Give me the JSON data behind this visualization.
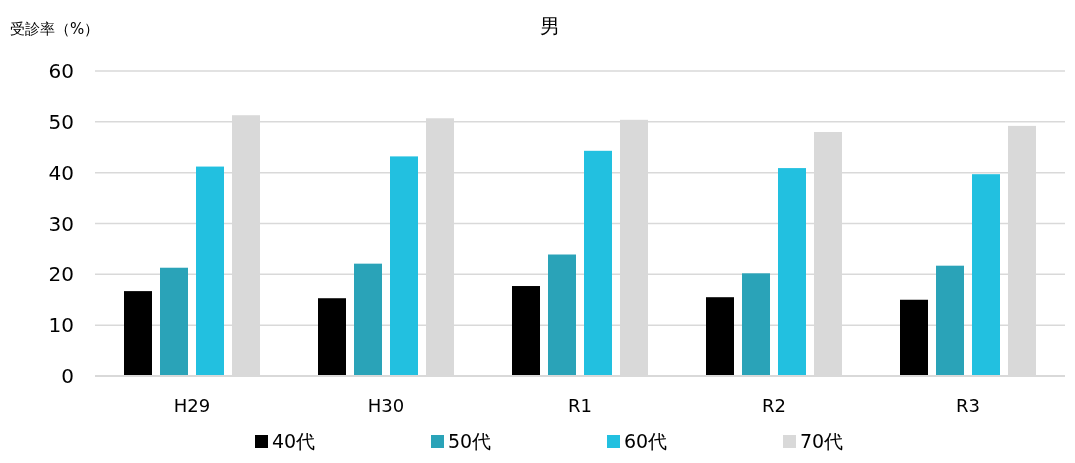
{
  "chart_data": {
    "type": "bar",
    "title": "男",
    "ylabel": "受診率（%）",
    "categories": [
      "H29",
      "H30",
      "R1",
      "R2",
      "R3"
    ],
    "series": [
      {
        "name": "40代",
        "color": "#000000",
        "values": [
          16.7,
          15.3,
          17.7,
          15.5,
          15.0
        ]
      },
      {
        "name": "50代",
        "color": "#2aa3b8",
        "values": [
          21.3,
          22.1,
          23.9,
          20.2,
          21.7
        ]
      },
      {
        "name": "60代",
        "color": "#22c0e0",
        "values": [
          41.2,
          43.2,
          44.3,
          40.9,
          39.7
        ]
      },
      {
        "name": "70代",
        "color": "#d9d9d9",
        "values": [
          51.3,
          50.7,
          50.4,
          48.0,
          49.2
        ]
      }
    ],
    "ylim": [
      0,
      60
    ],
    "yticks": [
      0,
      10,
      20,
      30,
      40,
      50,
      60
    ],
    "grid": "y",
    "legend": "bottom"
  }
}
